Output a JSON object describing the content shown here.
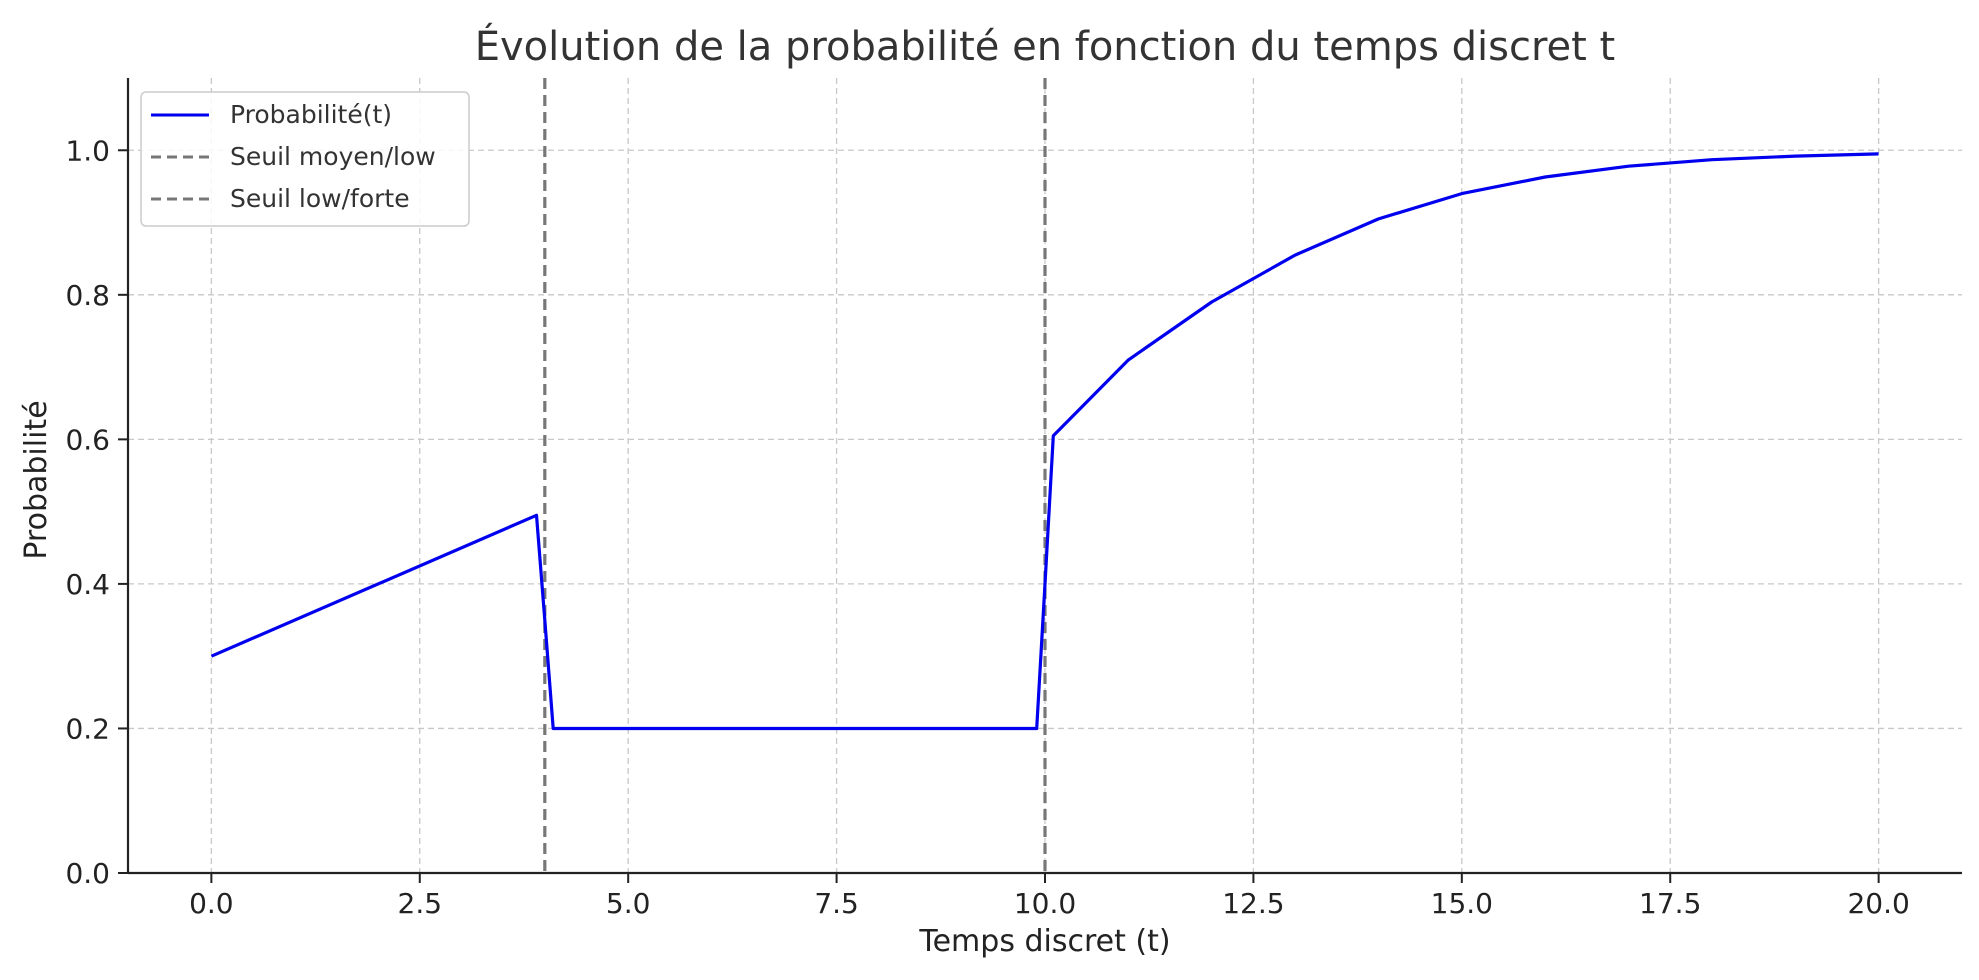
{
  "chart_data": {
    "type": "line",
    "title": "Évolution de la probabilité en fonction du temps discret t",
    "xlabel": "Temps discret (t)",
    "ylabel": "Probabilité",
    "xlim": [
      -1,
      21
    ],
    "ylim": [
      0,
      1.1
    ],
    "x_ticks": [
      0,
      2.5,
      5,
      7.5,
      10,
      12.5,
      15,
      17.5,
      20
    ],
    "x_tick_labels": [
      "0.0",
      "2.5",
      "5.0",
      "7.5",
      "10.0",
      "12.5",
      "15.0",
      "17.5",
      "20.0"
    ],
    "y_ticks": [
      0,
      0.2,
      0.4,
      0.6,
      0.8,
      1.0
    ],
    "y_tick_labels": [
      "0.0",
      "0.2",
      "0.4",
      "0.6",
      "0.8",
      "1.0"
    ],
    "grid": true,
    "legend_position": "top-left",
    "series": [
      {
        "name": "Probabilité(t)",
        "color": "#0000ee",
        "style": "solid",
        "x": [
          0,
          3.9,
          4.0,
          4.1,
          9.9,
          10.0,
          10.1,
          11,
          12,
          13,
          14,
          15,
          16,
          17,
          18,
          19,
          20
        ],
        "y": [
          0.3,
          0.495,
          0.35,
          0.2,
          0.2,
          0.4,
          0.605,
          0.71,
          0.79,
          0.855,
          0.905,
          0.94,
          0.963,
          0.978,
          0.987,
          0.992,
          0.995
        ]
      }
    ],
    "vertical_lines": [
      {
        "name": "Seuil moyen/low",
        "x": 4,
        "color": "#777777",
        "style": "dashed"
      },
      {
        "name": "Seuil low/forte",
        "x": 10,
        "color": "#777777",
        "style": "dashed"
      }
    ]
  }
}
